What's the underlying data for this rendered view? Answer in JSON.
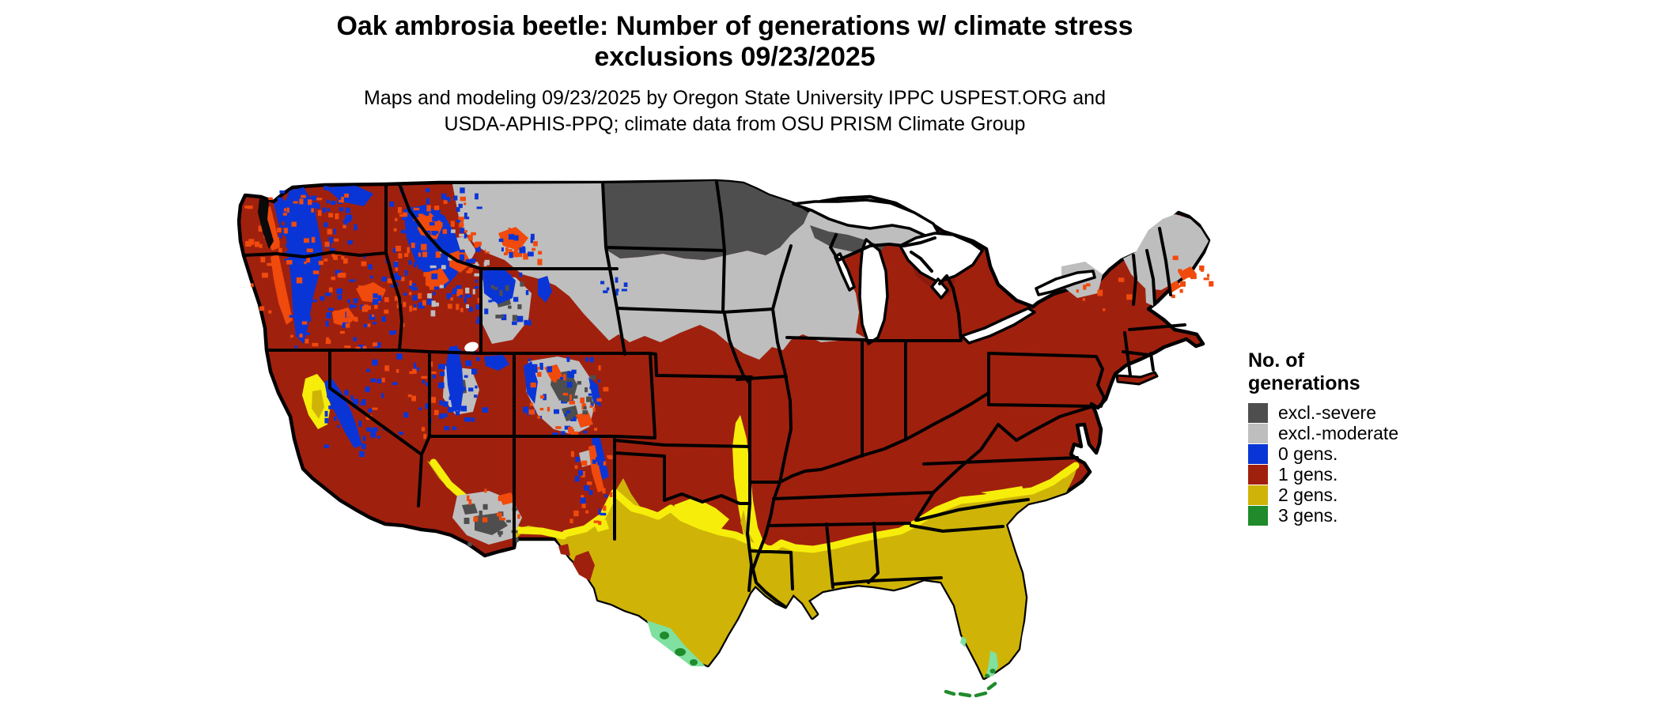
{
  "header": {
    "title_line1": "Oak ambrosia beetle: Number of generations w/ climate stress",
    "title_line2": "exclusions 09/23/2025",
    "subtitle_line1": "Maps and modeling 09/23/2025 by Oregon State University IPPC USPEST.ORG and",
    "subtitle_line2": "USDA-APHIS-PPQ; climate data from OSU PRISM Climate Group"
  },
  "legend": {
    "title_line1": "No. of",
    "title_line2": "generations",
    "items": [
      {
        "label": "excl.-severe",
        "color": "#4E4E4E",
        "key": "severe"
      },
      {
        "label": "excl.-moderate",
        "color": "#BEBEBE",
        "key": "moderate"
      },
      {
        "label": "0 gens.",
        "color": "#0A35D6",
        "key": "gen0"
      },
      {
        "label": "1 gens.",
        "color": "#A0200E",
        "key": "gen1"
      },
      {
        "label": "2 gens.",
        "color": "#CFB407",
        "key": "gen2"
      },
      {
        "label": "3 gens.",
        "color": "#1F8B2B",
        "key": "gen3"
      }
    ]
  },
  "map": {
    "type": "choropleth-raster",
    "region": "Continental United States with state boundaries",
    "palette": {
      "severe": "#4E4E4E",
      "moderate": "#BEBEBE",
      "gen0": "#0A35D6",
      "gen1": "#A0200E",
      "gen2": "#CFB407",
      "gen3": "#1F8B2B",
      "gen1_dark": "#8C1B0E",
      "transition_orange": "#F04A0C",
      "transition_yellow": "#F6EE0A",
      "transition_lightgreen": "#7FE0A0",
      "puget_sound": "#0A0A0A",
      "water": "#FFFFFF",
      "border": "#000000"
    },
    "zones_visible": [
      "North Dakota, northern Minnesota and far-northern Wisconsin/Michigan UP: excl.-severe (dark gray)",
      "Eastern Montana, Dakotas, Nebraska, Iowa, Wisconsin, upper Michigan, Adirondacks and northern New England: excl.-moderate (light gray)",
      "Cascades, Sierra Nevada, Idaho/Montana Rockies, Wasatch, Colorado Rockies: 0 gens. (blue) with orange transition speckling",
      "Most of the West, Plains, Midwest, Appalachians and Northeast: 1 gens. (dark red)",
      "Southern Arizona/New Mexico strip, Texas, Oklahoma south, Gulf states, Florida and coastal Carolinas: 2 gens. (gold) with bright-yellow transition band",
      "Rio Grande valley of south Texas, south Florida and the Keys: 3 gens. (green, light-green transition)"
    ]
  }
}
